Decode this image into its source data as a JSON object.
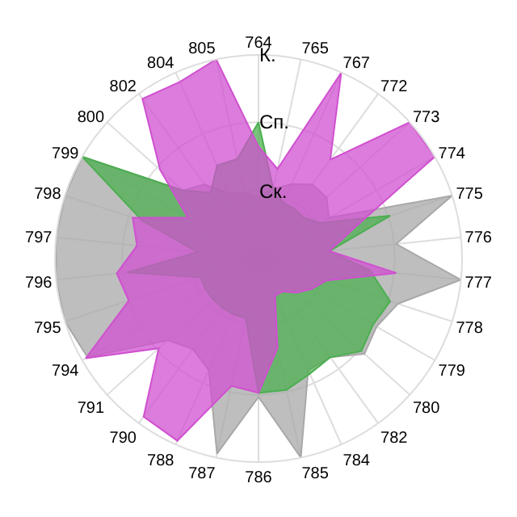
{
  "chart_data": {
    "type": "radar",
    "ylim": [
      0,
      1
    ],
    "grid": true,
    "legend": false,
    "categories": [
      "764",
      "765",
      "767",
      "772",
      "773",
      "774",
      "775",
      "776",
      "777",
      "778",
      "779",
      "780",
      "782",
      "784",
      "785",
      "786",
      "787",
      "788",
      "790",
      "791",
      "794",
      "795",
      "796",
      "797",
      "798",
      "799",
      "800",
      "802",
      "804",
      "805"
    ],
    "yticks": [
      {
        "value": 0.33,
        "label": "Ск."
      },
      {
        "value": 0.67,
        "label": "Сп."
      },
      {
        "value": 1,
        "label": "К."
      }
    ],
    "series": [
      {
        "color": "#a8a8a8",
        "values": [
          0.3,
          0.35,
          0.4,
          0.45,
          0.45,
          0.4,
          1.0,
          0.68,
          1.0,
          0.72,
          0.67,
          0.7,
          0.6,
          0.6,
          1.0,
          0.68,
          0.98,
          0.6,
          0.55,
          0.6,
          0.97,
          1.0,
          1.0,
          1.0,
          1.0,
          1.0,
          0.5,
          0.45,
          0.35,
          0.33
        ]
      },
      {
        "color": "#4caf50",
        "values": [
          0.67,
          0.35,
          0.3,
          0.3,
          0.3,
          0.35,
          0.68,
          0.35,
          0.55,
          0.68,
          0.65,
          0.68,
          0.6,
          0.62,
          0.66,
          0.66,
          0.3,
          0.3,
          0.3,
          0.3,
          0.3,
          0.3,
          0.65,
          0.3,
          0.6,
          1.0,
          0.5,
          0.4,
          0.5,
          0.5
        ]
      },
      {
        "color": "#d050d0",
        "values": [
          0.55,
          0.45,
          1.0,
          0.6,
          1.0,
          1.0,
          0.5,
          0.35,
          0.68,
          0.35,
          0.3,
          0.25,
          0.2,
          0.2,
          0.45,
          0.66,
          0.64,
          0.98,
          0.96,
          0.66,
          0.98,
          0.67,
          0.7,
          0.6,
          0.65,
          0.4,
          0.65,
          0.97,
          0.95,
          1.0
        ]
      }
    ]
  }
}
